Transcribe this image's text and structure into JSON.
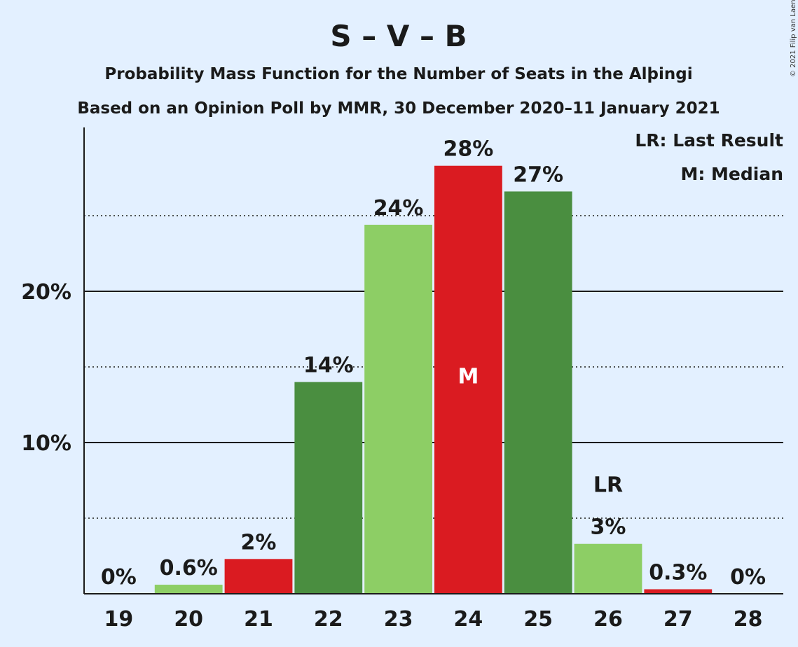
{
  "chart_data": {
    "type": "bar",
    "title": "S – V – B",
    "subtitle1": "Probability Mass Function for the Number of Seats in the Alþingi",
    "subtitle2": "Based on an Opinion Poll by MMR, 30 December 2020–11 January 2021",
    "copyright": "© 2021 Filip van Laenen",
    "categories": [
      "19",
      "20",
      "21",
      "22",
      "23",
      "24",
      "25",
      "26",
      "27",
      "28"
    ],
    "values": [
      0,
      0.6,
      2.3,
      14,
      24.4,
      28.3,
      26.6,
      3.3,
      0.3,
      0
    ],
    "data_labels": [
      "0%",
      "0.6%",
      "2%",
      "14%",
      "24%",
      "28%",
      "27%",
      "3%",
      "0.3%",
      "0%"
    ],
    "bar_colors": [
      "#8dce65",
      "#8dce65",
      "#da1b21",
      "#4a8e40",
      "#8dce65",
      "#da1b21",
      "#4a8e40",
      "#8dce65",
      "#da1b21",
      "#4a8e40"
    ],
    "y_ticks": [
      {
        "value": 10,
        "label": "10%"
      },
      {
        "value": 20,
        "label": "20%"
      }
    ],
    "y_minor_ticks": [
      5,
      15,
      25
    ],
    "ylim": [
      0,
      30
    ],
    "median_index": 5,
    "median_marker": "M",
    "last_result_index": 7,
    "last_result_marker": "LR",
    "legend": [
      {
        "text": "LR: Last Result"
      },
      {
        "text": "M: Median"
      }
    ],
    "legend_position": "top-right",
    "grid": true
  }
}
